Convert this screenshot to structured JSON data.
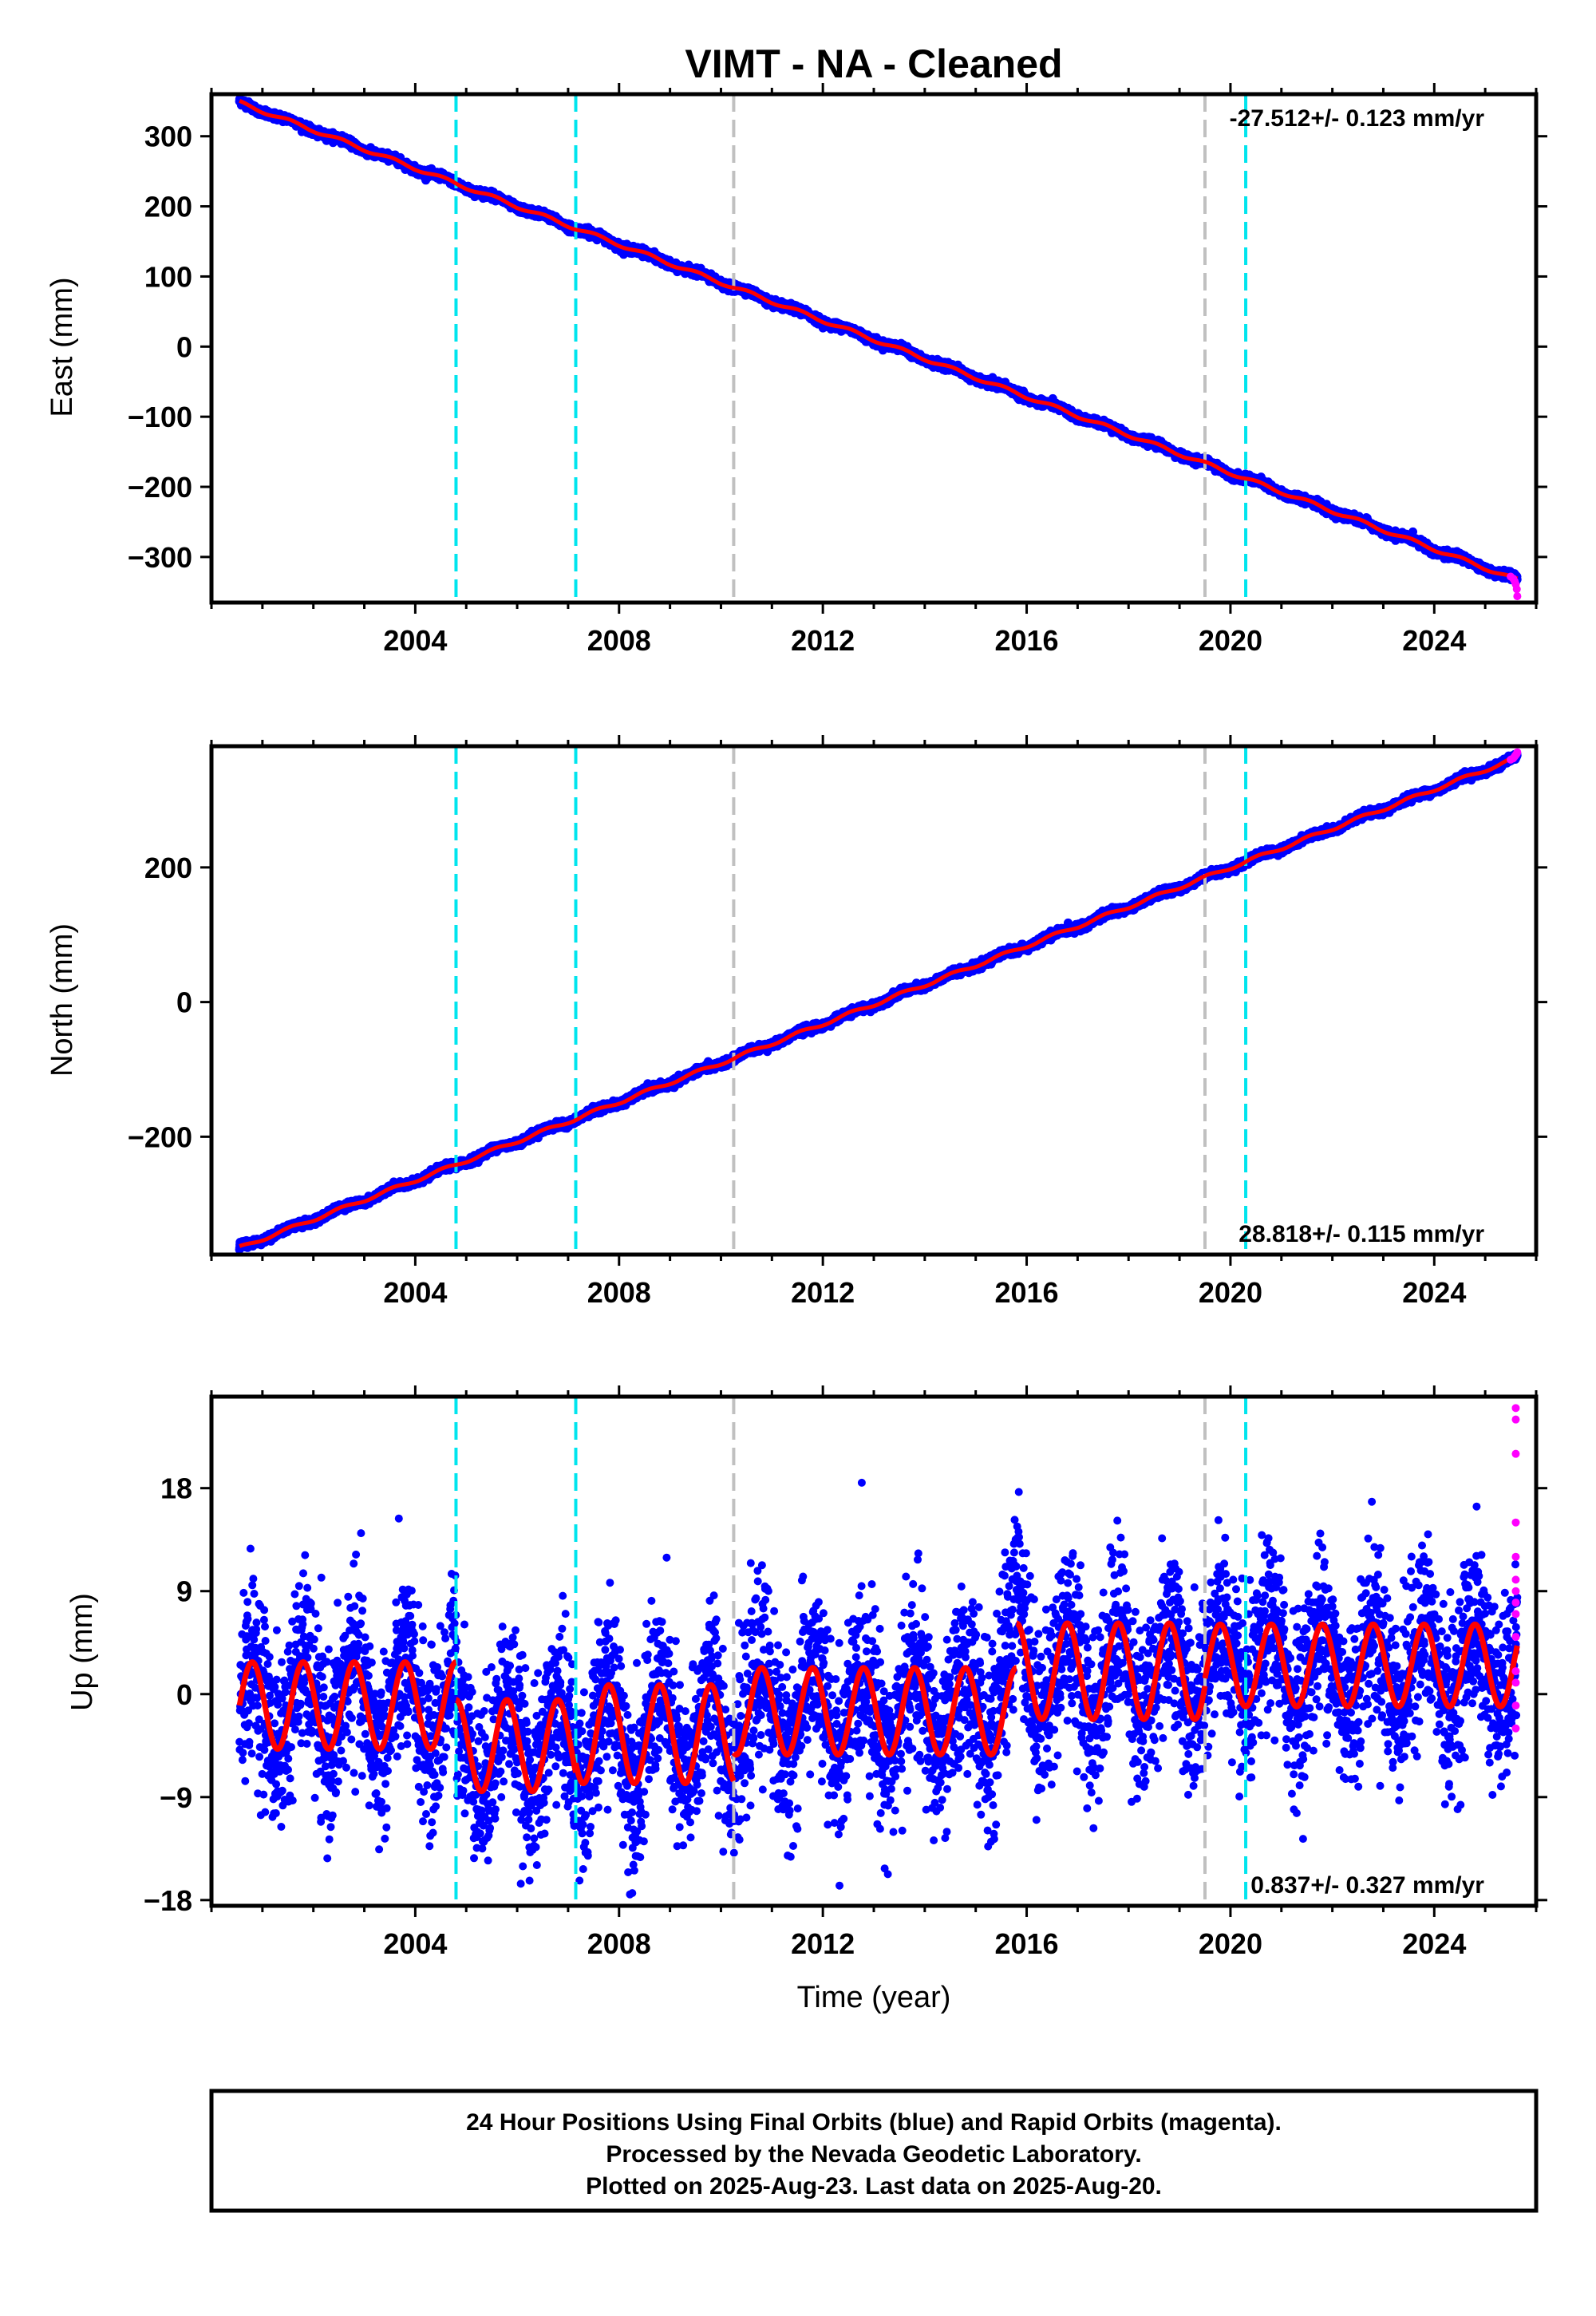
{
  "figure": {
    "title": "VIMT  - NA - Cleaned",
    "x_axis_label": "Time (year)",
    "footer_lines": [
      "24 Hour Positions Using Final Orbits (blue) and Rapid Orbits (magenta).",
      "Processed by the Nevada Geodetic Laboratory.",
      "Plotted on 2025-Aug-23. Last data on 2025-Aug-20."
    ],
    "colors": {
      "final_orbits": "#0000ff",
      "rapid_orbits": "#ff00ff",
      "model_fit": "#ff0000",
      "equipment_change": "#00e5ee",
      "earthquake_event": "#c0c0c0"
    }
  },
  "chart_data": [
    {
      "type": "scatter",
      "ylabel": "East (mm)",
      "rate_text": "-27.512+/- 0.123 mm/yr",
      "rate_position": "top-right",
      "xlim": [
        2000.0,
        2026.0
      ],
      "ylim": [
        -365,
        360
      ],
      "x_ticks": [
        2004,
        2008,
        2012,
        2016,
        2020,
        2024
      ],
      "y_ticks": [
        300,
        200,
        100,
        0,
        -100,
        -200,
        -300
      ],
      "y_tick_labels": [
        "300",
        "200",
        "100",
        "0",
        "−100",
        "−200",
        "−300"
      ],
      "trend": {
        "x_start": 2000.55,
        "y_start": 348,
        "x_end": 2025.63,
        "y_end": -333
      },
      "scatter_sigma": 2.5,
      "rapid_points": {
        "x": [
          2025.5,
          2025.55,
          2025.58,
          2025.6,
          2025.62,
          2025.63
        ],
        "y": [
          -328,
          -331,
          -335,
          -339,
          -346,
          -356
        ]
      },
      "vertical_lines": [
        {
          "x": 2004.8,
          "kind": "equipment_change"
        },
        {
          "x": 2007.15,
          "kind": "equipment_change"
        },
        {
          "x": 2010.25,
          "kind": "earthquake_event"
        },
        {
          "x": 2019.5,
          "kind": "earthquake_event"
        },
        {
          "x": 2020.3,
          "kind": "equipment_change"
        }
      ]
    },
    {
      "type": "scatter",
      "ylabel": "North (mm)",
      "rate_text": "28.818+/- 0.115 mm/yr",
      "rate_position": "bottom-right",
      "xlim": [
        2000.0,
        2026.0
      ],
      "ylim": [
        -375,
        380
      ],
      "x_ticks": [
        2004,
        2008,
        2012,
        2016,
        2020,
        2024
      ],
      "y_ticks": [
        200,
        0,
        -200
      ],
      "y_tick_labels": [
        "200",
        "0",
        "−200"
      ],
      "trend": {
        "x_start": 2000.55,
        "y_start": -365,
        "x_end": 2025.63,
        "y_end": 363
      },
      "scatter_sigma": 2.5,
      "rapid_points": {
        "x": [
          2025.5,
          2025.55,
          2025.58,
          2025.6,
          2025.62,
          2025.63
        ],
        "y": [
          360,
          362,
          365,
          367,
          369,
          371
        ]
      },
      "vertical_lines": [
        {
          "x": 2004.8,
          "kind": "equipment_change"
        },
        {
          "x": 2007.15,
          "kind": "equipment_change"
        },
        {
          "x": 2010.25,
          "kind": "earthquake_event"
        },
        {
          "x": 2019.5,
          "kind": "earthquake_event"
        },
        {
          "x": 2020.3,
          "kind": "equipment_change"
        }
      ]
    },
    {
      "type": "scatter",
      "ylabel": "Up (mm)",
      "rate_text": "0.837+/- 0.327 mm/yr",
      "rate_position": "bottom-right",
      "xlim": [
        2000.0,
        2026.0
      ],
      "ylim": [
        -18.5,
        26
      ],
      "x_ticks": [
        2004,
        2008,
        2012,
        2016,
        2020,
        2024
      ],
      "y_ticks": [
        18,
        9,
        0,
        -9,
        -18
      ],
      "y_tick_labels": [
        "18",
        "9",
        "0",
        "−9",
        "−18"
      ],
      "model_segments": [
        {
          "x_start": 2000.55,
          "x_end": 2004.8,
          "offset": -1.0,
          "amplitude": 3.8
        },
        {
          "x_start": 2004.8,
          "x_end": 2007.15,
          "offset": -4.5,
          "amplitude": 4.0
        },
        {
          "x_start": 2007.15,
          "x_end": 2010.25,
          "offset": -3.5,
          "amplitude": 4.3
        },
        {
          "x_start": 2010.25,
          "x_end": 2015.8,
          "offset": -1.5,
          "amplitude": 3.8
        },
        {
          "x_start": 2015.8,
          "x_end": 2019.5,
          "offset": 2.0,
          "amplitude": 4.2
        },
        {
          "x_start": 2019.5,
          "x_end": 2025.63,
          "offset": 2.5,
          "amplitude": 3.6
        }
      ],
      "scatter_sigma": 3.8,
      "anomaly_bump": {
        "x_start": 2015.3,
        "x_end": 2016.1,
        "extra": 5.0
      },
      "rapid_points": {
        "x": [
          2025.6,
          2025.6,
          2025.6,
          2025.6,
          2025.6,
          2025.6,
          2025.6,
          2025.6,
          2025.6,
          2025.6,
          2025.6,
          2025.6,
          2025.6,
          2025.6
        ],
        "y": [
          25,
          24,
          21,
          15,
          12,
          10,
          9,
          8,
          7,
          5,
          2,
          1,
          -1,
          -3
        ]
      },
      "vertical_lines": [
        {
          "x": 2004.8,
          "kind": "equipment_change"
        },
        {
          "x": 2007.15,
          "kind": "equipment_change"
        },
        {
          "x": 2010.25,
          "kind": "earthquake_event"
        },
        {
          "x": 2019.5,
          "kind": "earthquake_event"
        },
        {
          "x": 2020.3,
          "kind": "equipment_change"
        }
      ]
    }
  ]
}
